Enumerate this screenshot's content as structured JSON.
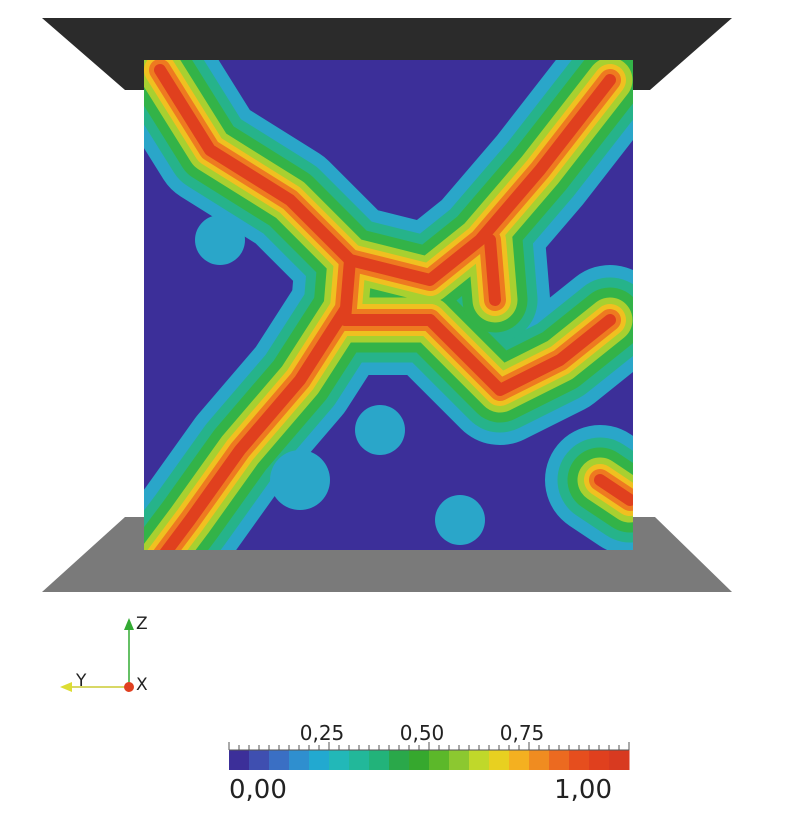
{
  "colorbar": {
    "tick_labels": [
      "0,25",
      "0,50",
      "0,75"
    ],
    "range_labels": [
      "0,00",
      "1,00"
    ]
  },
  "axes": {
    "z": "Z",
    "y": "Y",
    "x": "X"
  }
}
